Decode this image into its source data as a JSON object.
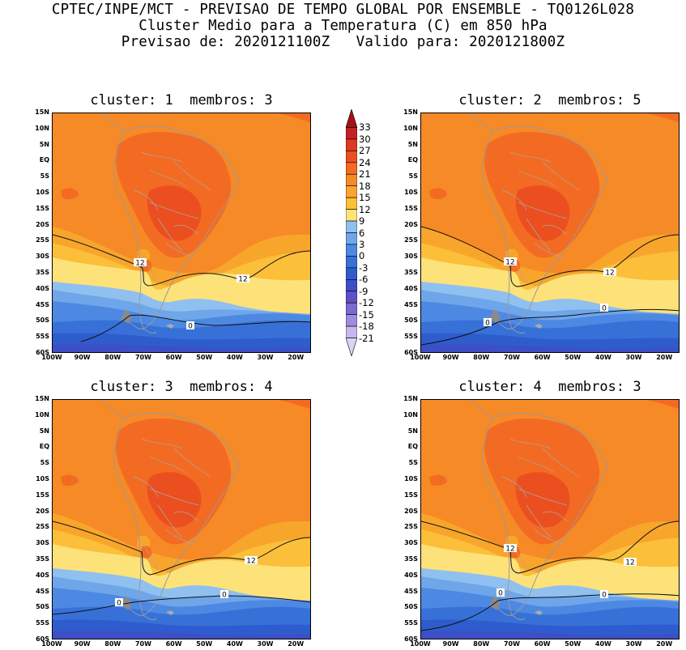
{
  "header": {
    "line1": "CPTEC/INPE/MCT - PREVISAO DE TEMPO GLOBAL POR ENSEMBLE - TQ0126L028",
    "line2": "Cluster Medio para a Temperatura (C) em 850 hPa",
    "line3": "Previsao de: 2020121100Z   Valido para: 2020121800Z"
  },
  "panels": [
    {
      "title": "cluster: 1  membros: 3",
      "contour_labels": [
        "12",
        "12",
        "0"
      ]
    },
    {
      "title": "cluster: 2  membros: 5",
      "contour_labels": [
        "12",
        "12",
        "0",
        "0"
      ]
    },
    {
      "title": "cluster: 3  membros: 4",
      "contour_labels": [
        "12",
        "0",
        "0"
      ]
    },
    {
      "title": "cluster: 4  membros: 3",
      "contour_labels": [
        "12",
        "12",
        "0",
        "0"
      ]
    }
  ],
  "axes": {
    "lat_labels": [
      "15N",
      "10N",
      "5N",
      "EQ",
      "5S",
      "10S",
      "15S",
      "20S",
      "25S",
      "30S",
      "35S",
      "40S",
      "45S",
      "50S",
      "55S",
      "60S"
    ],
    "lon_labels": [
      "100W",
      "90W",
      "80W",
      "70W",
      "60W",
      "50W",
      "40W",
      "30W",
      "20W"
    ]
  },
  "colorbar": {
    "labels": [
      "33",
      "30",
      "27",
      "24",
      "21",
      "18",
      "15",
      "12",
      "9",
      "6",
      "3",
      "0",
      "-3",
      "-6",
      "-9",
      "-12",
      "-15",
      "-18",
      "-21"
    ],
    "colors": [
      "#a51016",
      "#c42028",
      "#dd3a25",
      "#ec4f1f",
      "#f36b22",
      "#f68a26",
      "#f8a52c",
      "#fbbf3a",
      "#fde27a",
      "#8fc0ef",
      "#6fa6ea",
      "#4d89e2",
      "#3771d8",
      "#2f5ccc",
      "#3d4fc6",
      "#5d50c9",
      "#7c69d2",
      "#a08be0",
      "#c6b8ee",
      "#dcd3f6"
    ]
  }
}
